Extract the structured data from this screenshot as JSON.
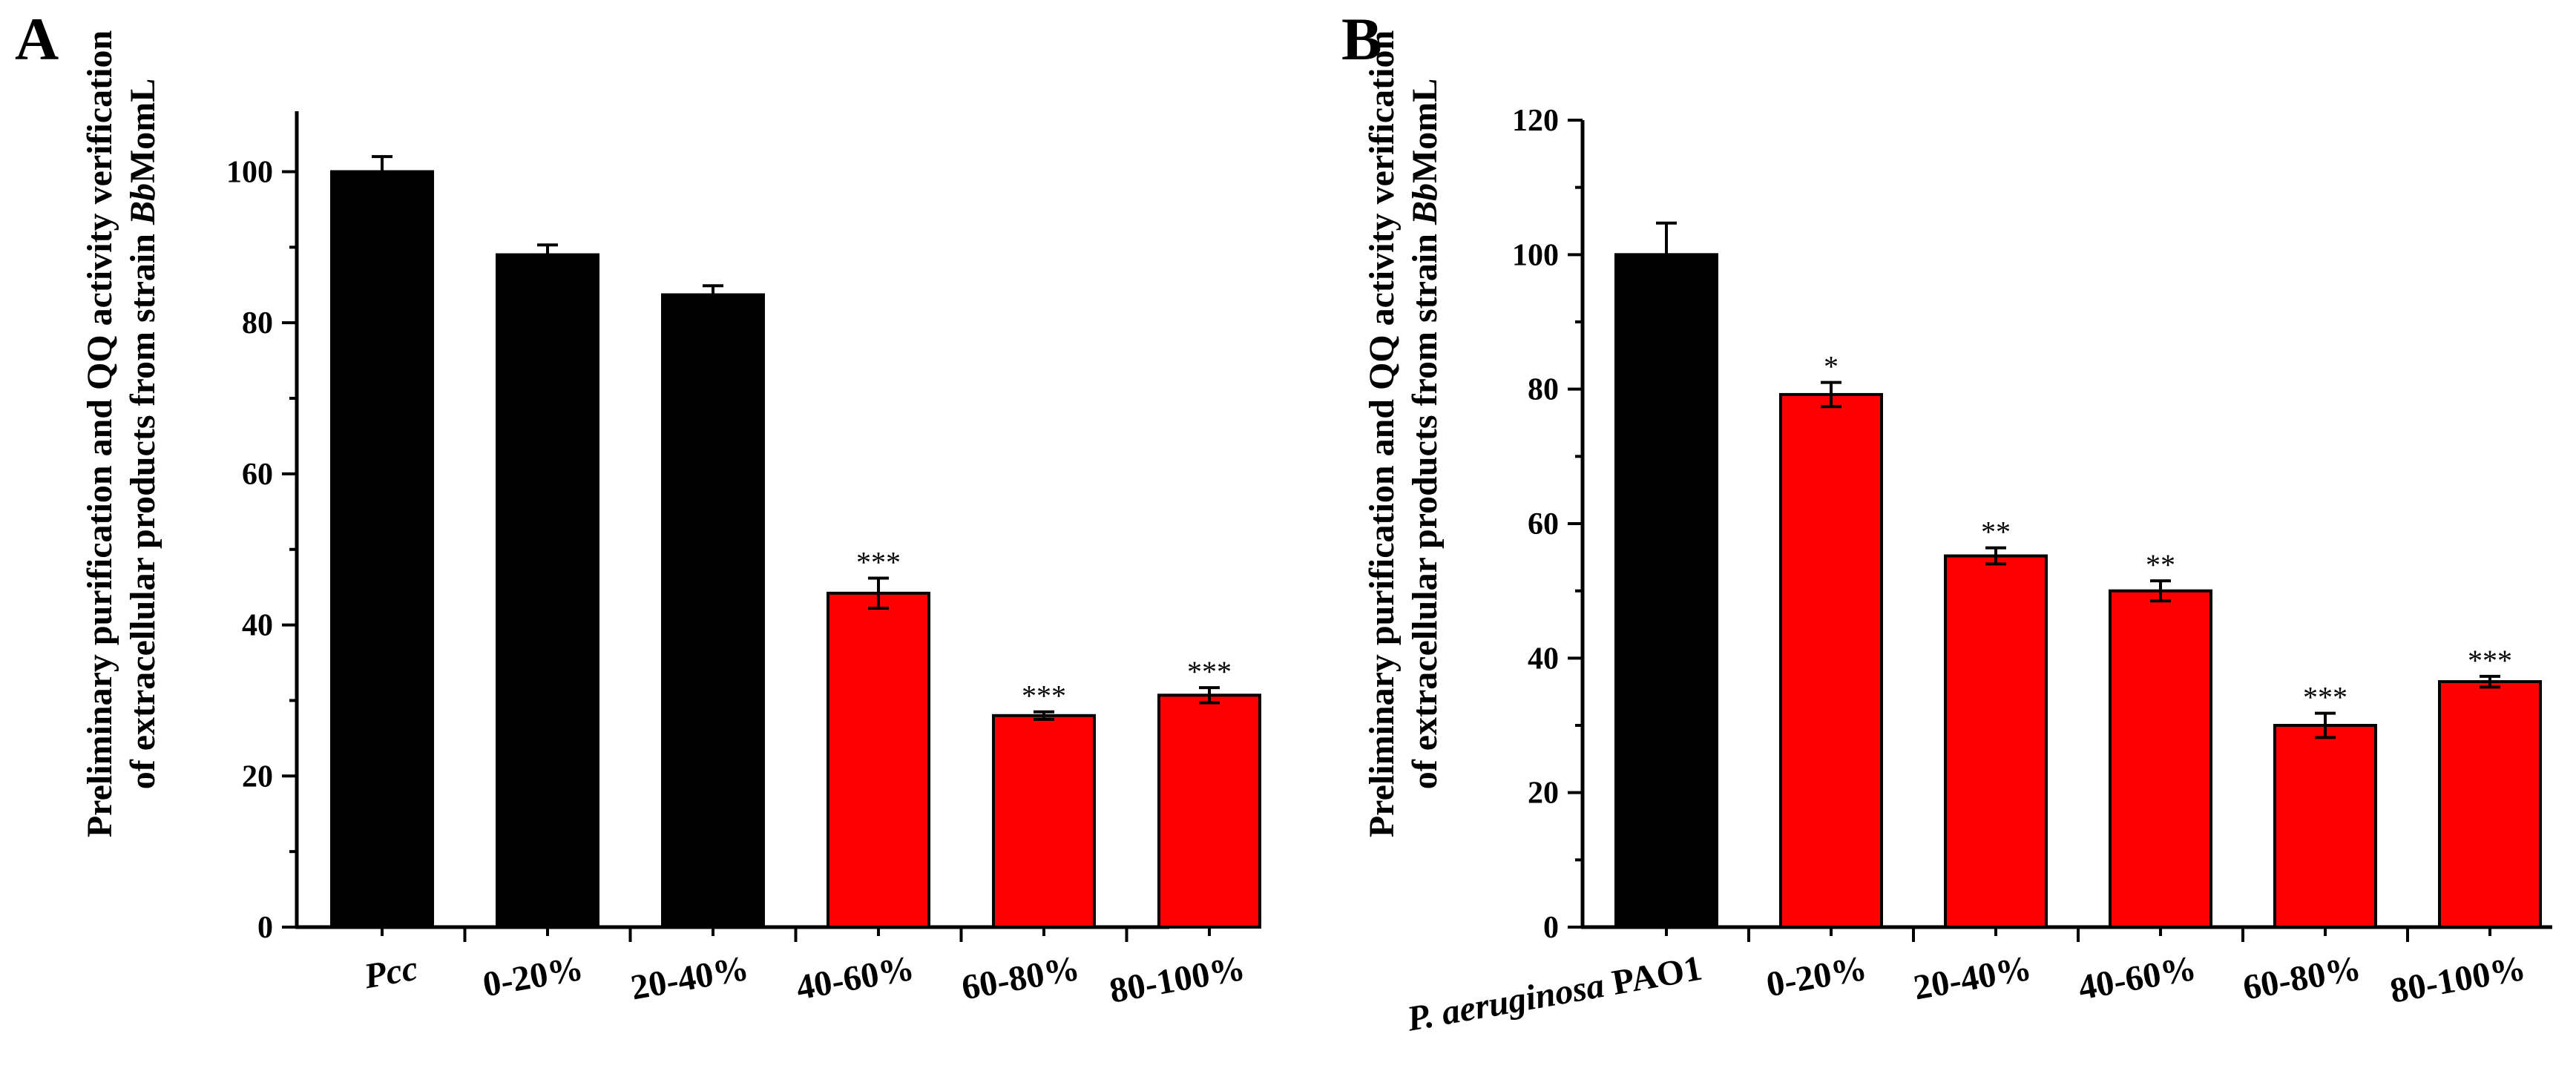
{
  "chart_data": [
    {
      "panel_label": "A",
      "type": "bar",
      "categories": [
        {
          "parts": [
            {
              "text": "Pcc",
              "italic": true
            }
          ]
        },
        {
          "parts": [
            {
              "text": "0-20%",
              "italic": false
            }
          ]
        },
        {
          "parts": [
            {
              "text": "20-40%",
              "italic": false
            }
          ]
        },
        {
          "parts": [
            {
              "text": "40-60%",
              "italic": false
            }
          ]
        },
        {
          "parts": [
            {
              "text": "60-80%",
              "italic": false
            }
          ]
        },
        {
          "parts": [
            {
              "text": "80-100%",
              "italic": false
            }
          ]
        }
      ],
      "values": [
        100,
        89,
        83.7,
        44.2,
        28,
        30.7
      ],
      "errors": [
        2,
        1.3,
        1.2,
        2,
        0.5,
        1
      ],
      "bar_colors": [
        "#000000",
        "#000000",
        "#000000",
        "#ff0000",
        "#ff0000",
        "#ff0000"
      ],
      "significance": [
        "",
        "",
        "",
        "***",
        "***",
        "***"
      ],
      "ylabel_lines": [
        [
          {
            "text": "Preliminary purification and QQ activity verification",
            "italic": false
          }
        ],
        [
          {
            "text": "of extracellular products from strain ",
            "italic": false
          },
          {
            "text": "Bb",
            "italic": true
          },
          {
            "text": "MomL",
            "italic": false
          }
        ]
      ],
      "ylim": [
        0,
        108
      ],
      "yticks": [
        0,
        20,
        40,
        60,
        80,
        100
      ],
      "minor_step": 10
    },
    {
      "panel_label": "B",
      "type": "bar",
      "categories": [
        {
          "parts": [
            {
              "text": "P. aeruginosa",
              "italic": true
            },
            {
              "text": " PAO1",
              "italic": false
            }
          ]
        },
        {
          "parts": [
            {
              "text": "0-20%",
              "italic": false
            }
          ]
        },
        {
          "parts": [
            {
              "text": "20-40%",
              "italic": false
            }
          ]
        },
        {
          "parts": [
            {
              "text": "40-60%",
              "italic": false
            }
          ]
        },
        {
          "parts": [
            {
              "text": "60-80%",
              "italic": false
            }
          ]
        },
        {
          "parts": [
            {
              "text": "80-100%",
              "italic": false
            }
          ]
        }
      ],
      "values": [
        100,
        79.2,
        55.2,
        50,
        30,
        36.5
      ],
      "errors": [
        4.7,
        1.8,
        1.2,
        1.5,
        1.8,
        0.8
      ],
      "bar_colors": [
        "#000000",
        "#ff0000",
        "#ff0000",
        "#ff0000",
        "#ff0000",
        "#ff0000"
      ],
      "significance": [
        "",
        "*",
        "**",
        "**",
        "***",
        "***"
      ],
      "ylabel_lines": [
        [
          {
            "text": "Preliminary purification and QQ activity verification",
            "italic": false
          }
        ],
        [
          {
            "text": "of extracellular products from strain ",
            "italic": false
          },
          {
            "text": "Bb",
            "italic": true
          },
          {
            "text": "MomL",
            "italic": false
          }
        ]
      ],
      "ylim": [
        0,
        120
      ],
      "yticks": [
        0,
        20,
        40,
        60,
        80,
        100,
        120
      ],
      "minor_step": 10
    }
  ]
}
